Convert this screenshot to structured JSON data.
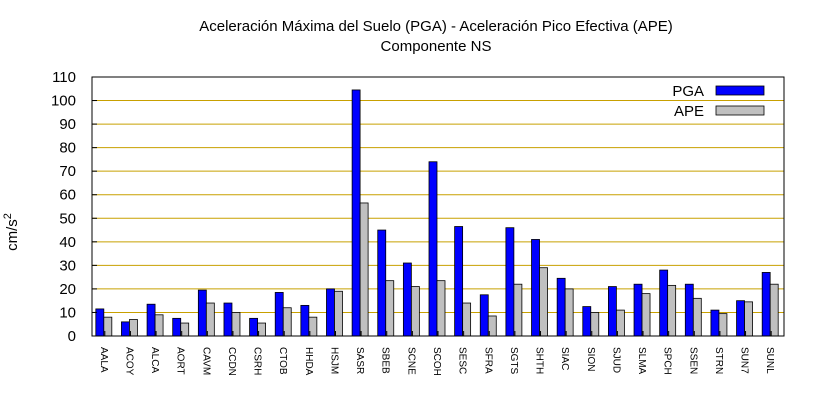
{
  "chart_data": {
    "type": "bar",
    "title": "Aceleración Máxima del Suelo (PGA) -  Aceleración Pico Efectiva (APE)",
    "subtitle": "Componente NS",
    "ylabel": "cm/s",
    "ylabel_superscript": "2",
    "xlabel": "",
    "ylim": [
      0,
      110
    ],
    "yticks": [
      0,
      10,
      20,
      30,
      40,
      50,
      60,
      70,
      80,
      90,
      100,
      110
    ],
    "grid": true,
    "legend_position": "top-right",
    "categories": [
      "AALA",
      "ACOY",
      "ALCA",
      "AORT",
      "CAVM",
      "CCDN",
      "CSRH",
      "CTOB",
      "HHDA",
      "HSJM",
      "SASR",
      "SBEB",
      "SCNE",
      "SCOH",
      "SESC",
      "SFRA",
      "SGTS",
      "SHTH",
      "SIAC",
      "SION",
      "SJUD",
      "SLMA",
      "SPCH",
      "SSEN",
      "STRN",
      "SUN7",
      "SUNL"
    ],
    "series": [
      {
        "name": "PGA",
        "color": "#0000ff",
        "values": [
          11.5,
          6,
          13.5,
          7.5,
          19.5,
          14,
          7.5,
          18.5,
          13,
          20,
          104.5,
          45,
          31,
          74,
          46.5,
          17.5,
          46,
          41,
          24.5,
          12.5,
          21,
          22,
          28,
          22,
          11,
          15,
          27
        ]
      },
      {
        "name": "APE",
        "color": "#c0c0c0",
        "values": [
          8,
          7,
          9,
          5.5,
          14,
          10,
          5.5,
          12,
          8,
          19,
          56.5,
          23.5,
          21,
          23.5,
          14,
          8.5,
          22,
          29,
          20,
          10,
          11,
          18,
          21.5,
          16,
          9.5,
          14.5,
          22
        ]
      }
    ],
    "colors": {
      "grid": "#c8a000",
      "axis": "#000000",
      "bar_edge": "#000000"
    }
  }
}
